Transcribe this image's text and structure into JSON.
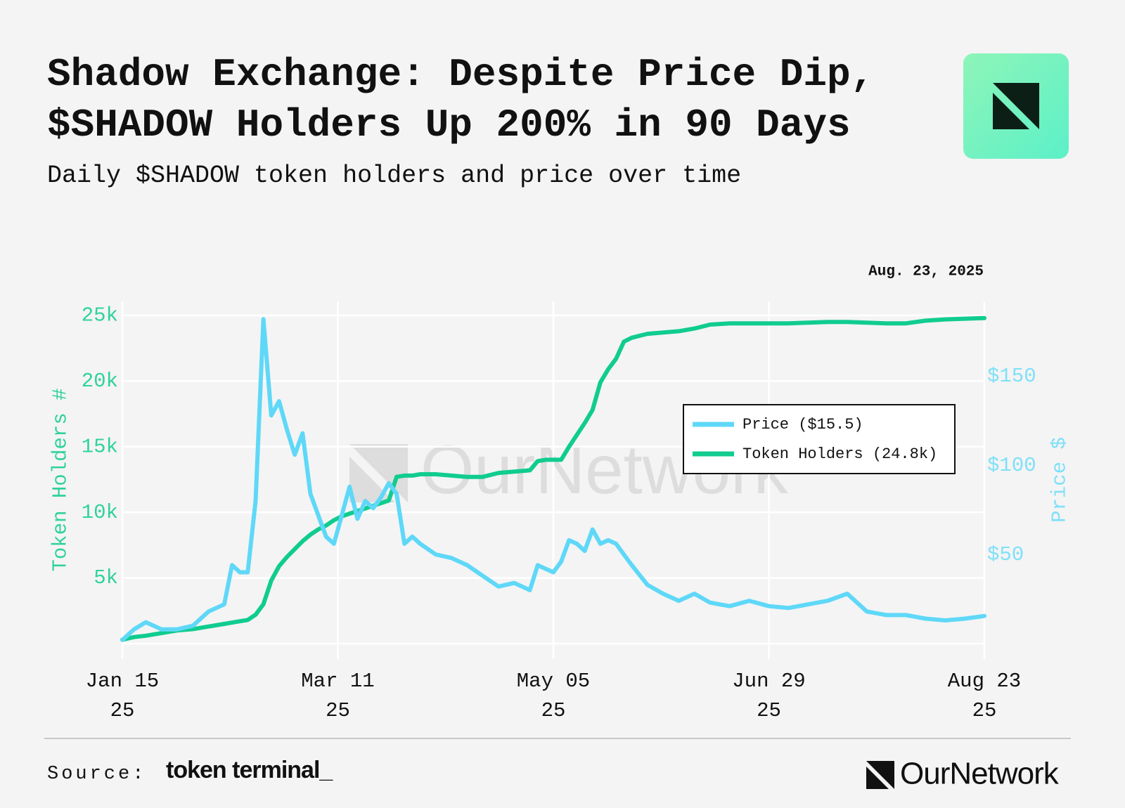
{
  "chart_data": {
    "type": "line",
    "title": "Shadow Exchange: Despite Price Dip, $SHADOW Holders Up 200% in 90 Days",
    "subtitle": "Daily $SHADOW token holders and price over time",
    "annotation": "Aug. 23, 2025",
    "y_label": "Token Holders #",
    "y2_label": "Price $",
    "grid": true,
    "legend": "right",
    "x": [
      "2025-01-15",
      "2025-01-18",
      "2025-01-21",
      "2025-01-25",
      "2025-01-29",
      "2025-02-02",
      "2025-02-06",
      "2025-02-10",
      "2025-02-12",
      "2025-02-14",
      "2025-02-16",
      "2025-02-18",
      "2025-02-20",
      "2025-02-22",
      "2025-02-24",
      "2025-02-26",
      "2025-02-28",
      "2025-03-02",
      "2025-03-04",
      "2025-03-06",
      "2025-03-08",
      "2025-03-10",
      "2025-03-12",
      "2025-03-14",
      "2025-03-16",
      "2025-03-18",
      "2025-03-20",
      "2025-03-22",
      "2025-03-24",
      "2025-03-26",
      "2025-03-28",
      "2025-03-30",
      "2025-04-01",
      "2025-04-05",
      "2025-04-09",
      "2025-04-13",
      "2025-04-17",
      "2025-04-21",
      "2025-04-25",
      "2025-04-29",
      "2025-05-01",
      "2025-05-03",
      "2025-05-05",
      "2025-05-07",
      "2025-05-09",
      "2025-05-11",
      "2025-05-13",
      "2025-05-15",
      "2025-05-17",
      "2025-05-19",
      "2025-05-21",
      "2025-05-23",
      "2025-05-25",
      "2025-05-29",
      "2025-06-02",
      "2025-06-06",
      "2025-06-10",
      "2025-06-14",
      "2025-06-19",
      "2025-06-24",
      "2025-06-29",
      "2025-07-04",
      "2025-07-09",
      "2025-07-14",
      "2025-07-19",
      "2025-07-24",
      "2025-07-29",
      "2025-08-03",
      "2025-08-08",
      "2025-08-13",
      "2025-08-18",
      "2025-08-23"
    ],
    "xlim": [
      "2025-01-15",
      "2025-08-23"
    ],
    "xticks": [
      {
        "value": "2025-01-15",
        "label": "Jan 15\n25"
      },
      {
        "value": "2025-03-11",
        "label": "Mar 11\n25"
      },
      {
        "value": "2025-05-05",
        "label": "May 05\n25"
      },
      {
        "value": "2025-06-29",
        "label": "Jun 29\n25"
      },
      {
        "value": "2025-08-23",
        "label": "Aug 23\n25"
      }
    ],
    "ylim": [
      0,
      25800
    ],
    "yticks": [
      {
        "value": 5000,
        "label": "5k"
      },
      {
        "value": 10000,
        "label": "10k"
      },
      {
        "value": 15000,
        "label": "15k"
      },
      {
        "value": 20000,
        "label": "20k"
      },
      {
        "value": 25000,
        "label": "25k"
      }
    ],
    "y2lim": [
      0,
      190
    ],
    "y2ticks": [
      {
        "value": 50,
        "label": "$50"
      },
      {
        "value": 100,
        "label": "$100"
      },
      {
        "value": 150,
        "label": "$150"
      }
    ],
    "series": [
      {
        "name": "Price ($15.5)",
        "color": "#5fd8f8",
        "axis": "y2",
        "values": [
          2,
          8,
          12,
          8,
          8,
          10,
          18,
          22,
          44,
          40,
          40,
          80,
          182,
          128,
          136,
          120,
          106,
          118,
          84,
          72,
          60,
          56,
          72,
          88,
          70,
          80,
          76,
          82,
          90,
          84,
          56,
          60,
          56,
          50,
          48,
          44,
          38,
          32,
          34,
          30,
          44,
          42,
          40,
          46,
          58,
          56,
          52,
          64,
          56,
          58,
          56,
          50,
          44,
          33,
          28,
          24,
          28,
          23,
          21,
          24,
          21,
          20,
          22,
          24,
          28,
          18,
          16,
          16,
          14,
          13,
          14,
          15.5
        ]
      },
      {
        "name": "Token Holders (24.8k)",
        "color": "#10cc8f",
        "values": [
          300,
          500,
          600,
          800,
          1000,
          1100,
          1300,
          1500,
          1600,
          1700,
          1800,
          2200,
          3000,
          4800,
          5900,
          6600,
          7200,
          7800,
          8300,
          8700,
          9000,
          9400,
          9700,
          9900,
          10100,
          10300,
          10500,
          10700,
          10900,
          12700,
          12800,
          12800,
          12900,
          12900,
          12800,
          12700,
          12700,
          13000,
          13100,
          13200,
          13900,
          14000,
          14000,
          14000,
          15000,
          15900,
          16800,
          17800,
          19900,
          20900,
          21700,
          23000,
          23300,
          23600,
          23700,
          23800,
          24000,
          24300,
          24400,
          24400,
          24400,
          24400,
          24450,
          24500,
          24500,
          24450,
          24400,
          24400,
          24600,
          24700,
          24750,
          24800
        ]
      }
    ]
  },
  "watermark": "OurNetwork",
  "source": {
    "label": "Source:",
    "name": "token terminal_"
  },
  "brand": "OurNetwork"
}
